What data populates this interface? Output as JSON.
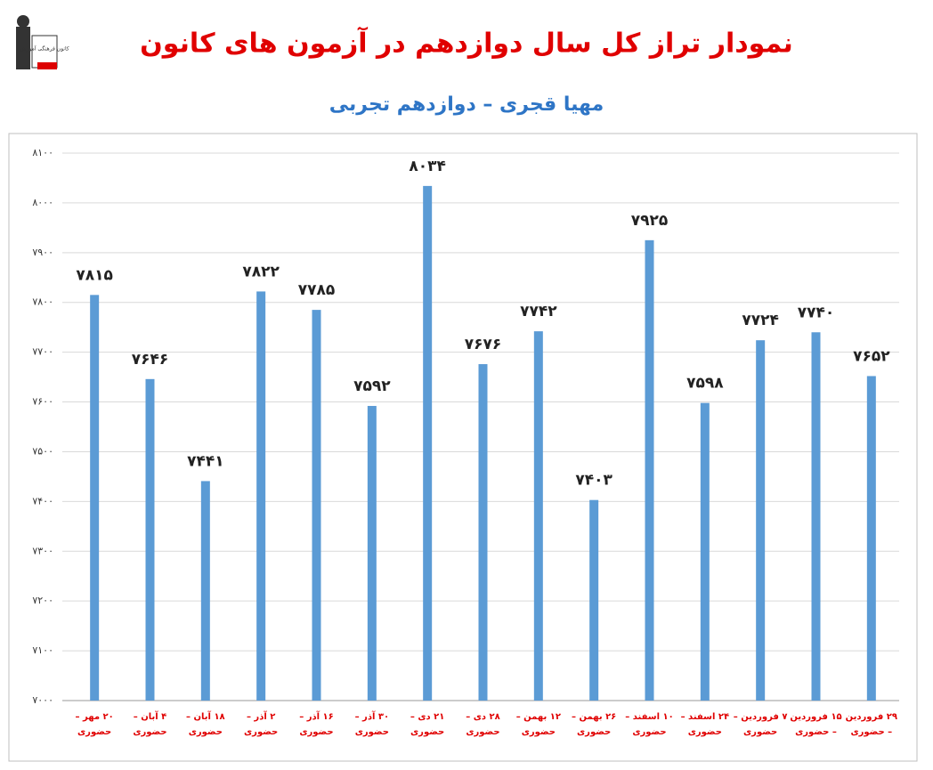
{
  "logo": {
    "text": "کانون فرهنگی آموزش"
  },
  "chart_data": {
    "type": "bar",
    "title": "نمودار تراز کل سال دوازدهم در آزمون های کانون",
    "subtitle": "مهیا قجری – دوازدهم تجربی",
    "categories": [
      "۲۰ مهر – حضوری",
      "۴ آبان – حضوری",
      "۱۸ آبان – حضوری",
      "۲ آذر – حضوری",
      "۱۶ آذر – حضوری",
      "۳۰ آذر – حضوری",
      "۲۱ دی – حضوری",
      "۲۸ دی – حضوری",
      "۱۲ بهمن – حضوری",
      "۲۶ بهمن – حضوری",
      "۱۰ اسفند – حضوری",
      "۲۴ اسفند – حضوری",
      "۷ فروردین – حضوری",
      "۱۵ فروردین – حضوری",
      "۲۹ فروردین – حضوری"
    ],
    "values": [
      7815,
      7646,
      7441,
      7822,
      7785,
      7592,
      8034,
      7676,
      7742,
      7403,
      7925,
      7598,
      7724,
      7740,
      7652
    ],
    "value_labels": [
      "۷۸۱۵",
      "۷۶۴۶",
      "۷۴۴۱",
      "۷۸۲۲",
      "۷۷۸۵",
      "۷۵۹۲",
      "۸۰۳۴",
      "۷۶۷۶",
      "۷۷۴۲",
      "۷۴۰۳",
      "۷۹۲۵",
      "۷۵۹۸",
      "۷۷۲۴",
      "۷۷۴۰",
      "۷۶۵۲"
    ],
    "color": "#5b9bd5",
    "ylim": [
      7000,
      8100
    ],
    "yticks": [
      {
        "value": 7000,
        "label": "۷۰۰۰"
      },
      {
        "value": 7100,
        "label": "۷۱۰۰"
      },
      {
        "value": 7200,
        "label": "۷۲۰۰"
      },
      {
        "value": 7300,
        "label": "۷۳۰۰"
      },
      {
        "value": 7400,
        "label": "۷۴۰۰"
      },
      {
        "value": 7500,
        "label": "۷۵۰۰"
      },
      {
        "value": 7600,
        "label": "۷۶۰۰"
      },
      {
        "value": 7700,
        "label": "۷۷۰۰"
      },
      {
        "value": 7800,
        "label": "۷۸۰۰"
      },
      {
        "value": 7900,
        "label": "۷۹۰۰"
      },
      {
        "value": 8000,
        "label": "۸۰۰۰"
      },
      {
        "value": 8100,
        "label": "۸۱۰۰"
      }
    ],
    "grid": true
  }
}
